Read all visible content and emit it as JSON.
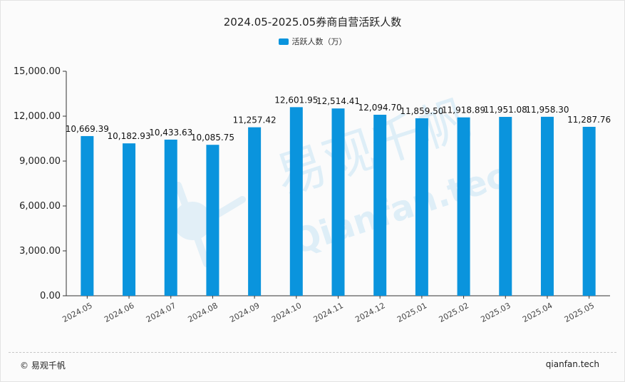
{
  "chart_data": {
    "type": "bar",
    "title": "2024.05-2025.05券商自营活跃人数",
    "categories": [
      "2024.05",
      "2024.06",
      "2024.07",
      "2024.08",
      "2024.09",
      "2024.10",
      "2024.11",
      "2024.12",
      "2025.01",
      "2025.02",
      "2025.03",
      "2025.04",
      "2025.05"
    ],
    "series": [
      {
        "name": "活跃人数（万）",
        "values": [
          10669.39,
          10182.93,
          10433.63,
          10085.75,
          11257.42,
          12601.95,
          12514.41,
          12094.7,
          11859.5,
          11918.89,
          11951.08,
          11958.3,
          11287.76
        ],
        "labels": [
          "10,669.39",
          "10,182.93",
          "10,433.63",
          "10,085.75",
          "11,257.42",
          "12,601.95",
          "12,514.41",
          "12,094.70",
          "11,859.50",
          "11,918.89",
          "11,951.08",
          "11,958.30",
          "11,287.76"
        ]
      }
    ],
    "ylim": [
      0,
      15000
    ],
    "yticks": [
      "0.00",
      "3,000.00",
      "6,000.00",
      "9,000.00",
      "12,000.00",
      "15,000.00"
    ],
    "legend_position": "top-center",
    "grid": false,
    "colors": {
      "bar": "#0a94dd",
      "axis": "#333333",
      "watermark": "#cfe6f5"
    }
  },
  "watermark": {
    "brand": "易观千帆",
    "url": "Qianfan.tech"
  },
  "footer": {
    "left": "© 易观千帆",
    "right": "qianfan.tech"
  }
}
